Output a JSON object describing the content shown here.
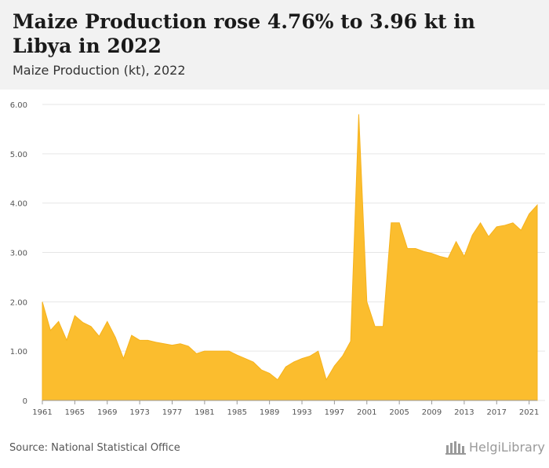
{
  "header": {
    "title": "Maize Production rose 4.76% to 3.96 kt in Libya in 2022",
    "subtitle": "Maize Production (kt), 2022"
  },
  "footer": {
    "source": "Source: National Statistical Office",
    "logo_text": "HelgiLibrary"
  },
  "colors": {
    "area_fill": "#fbbd2e",
    "grid": "#e6e6e6",
    "header_bg": "#f2f2f2"
  },
  "chart_data": {
    "type": "area",
    "title": "Maize Production rose 4.76% to 3.96 kt in Libya in 2022",
    "xlabel": "",
    "ylabel": "",
    "ylim": [
      0,
      6
    ],
    "yticks": [
      "0",
      "1.00",
      "2.00",
      "3.00",
      "4.00",
      "5.00",
      "6.00"
    ],
    "xticks": [
      "1961",
      "1965",
      "1969",
      "1973",
      "1977",
      "1981",
      "1985",
      "1989",
      "1993",
      "1997",
      "2001",
      "2005",
      "2009",
      "2013",
      "2017",
      "2021"
    ],
    "grid": true,
    "legend": "none",
    "x": [
      1961,
      1962,
      1963,
      1964,
      1965,
      1966,
      1967,
      1968,
      1969,
      1970,
      1971,
      1972,
      1973,
      1974,
      1975,
      1976,
      1977,
      1978,
      1979,
      1980,
      1981,
      1982,
      1983,
      1984,
      1985,
      1986,
      1987,
      1988,
      1989,
      1990,
      1991,
      1992,
      1993,
      1994,
      1995,
      1996,
      1997,
      1998,
      1999,
      2000,
      2001,
      2002,
      2003,
      2004,
      2005,
      2006,
      2007,
      2008,
      2009,
      2010,
      2011,
      2012,
      2013,
      2014,
      2015,
      2016,
      2017,
      2018,
      2019,
      2020,
      2021,
      2022
    ],
    "values": [
      2.0,
      1.42,
      1.6,
      1.22,
      1.72,
      1.58,
      1.5,
      1.3,
      1.6,
      1.28,
      0.85,
      1.32,
      1.22,
      1.22,
      1.18,
      1.15,
      1.12,
      1.15,
      1.1,
      0.95,
      1.0,
      1.0,
      1.0,
      1.0,
      0.92,
      0.85,
      0.78,
      0.62,
      0.55,
      0.42,
      0.68,
      0.78,
      0.85,
      0.9,
      1.0,
      0.42,
      0.7,
      0.9,
      1.2,
      5.8,
      2.0,
      1.5,
      1.5,
      3.6,
      3.6,
      3.08,
      3.08,
      3.02,
      2.98,
      2.92,
      2.88,
      3.22,
      2.92,
      3.35,
      3.6,
      3.32,
      3.52,
      3.55,
      3.6,
      3.45,
      3.78,
      3.96
    ]
  }
}
